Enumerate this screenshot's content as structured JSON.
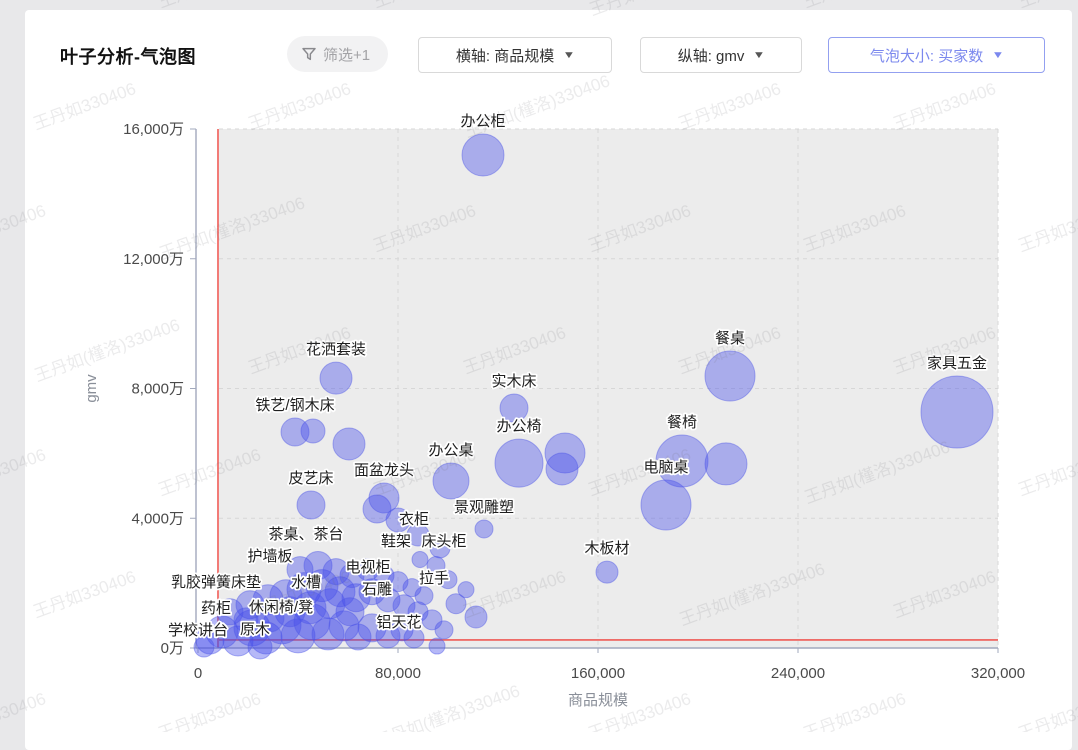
{
  "header": {
    "title": "叶子分析-气泡图",
    "filter_label": "筛选+1",
    "dropdowns": [
      {
        "id": "x-axis",
        "label": "横轴: 商品规模"
      },
      {
        "id": "y-axis",
        "label": "纵轴: gmv"
      },
      {
        "id": "bubble-size",
        "label": "气泡大小: 买家数"
      }
    ],
    "accent_color": "#7b88ee"
  },
  "watermark": {
    "texts": [
      "王丹如330406",
      "王丹如(槿洛)330406"
    ]
  },
  "chart_data": {
    "type": "scatter",
    "variant": "bubble",
    "xlabel": "商品规模",
    "ylabel": "gmv",
    "grid": "dashed",
    "plot_bg": "#ececec",
    "bubble_fill": "rgba(70,78,235,0.40)",
    "bubble_stroke": "rgba(80,88,230,0.45)",
    "xlim": [
      0,
      320000
    ],
    "ylim_wan": [
      0,
      16000
    ],
    "x_ticks": [
      {
        "value": 0,
        "label": "0"
      },
      {
        "value": 80000,
        "label": "80,000"
      },
      {
        "value": 160000,
        "label": "160,000"
      },
      {
        "value": 240000,
        "label": "240,000"
      },
      {
        "value": 320000,
        "label": "320,000"
      }
    ],
    "y_ticks": [
      {
        "value": 0,
        "label": "0万"
      },
      {
        "value": 4000,
        "label": "4,000万"
      },
      {
        "value": 8000,
        "label": "8,000万"
      },
      {
        "value": 12000,
        "label": "12,000万"
      },
      {
        "value": 16000,
        "label": "16,000万"
      }
    ],
    "reference_lines": {
      "x_value": 8000,
      "y_value_wan": 250,
      "color": "#ee5a55"
    },
    "labeled_points": [
      {
        "label": "办公柜",
        "x": 114000,
        "gmv_wan": 15200,
        "r": 21
      },
      {
        "label": "花洒套装",
        "x": 55200,
        "gmv_wan": 8320,
        "r": 16
      },
      {
        "label": "铁艺/钢木床",
        "x": 38800,
        "gmv_wan": 6660,
        "r": 14
      },
      {
        "label": "皮艺床",
        "x": 45200,
        "gmv_wan": 4410,
        "r": 14
      },
      {
        "label": "面盆龙头",
        "x": 74400,
        "gmv_wan": 4625,
        "r": 15
      },
      {
        "label": "办公桌",
        "x": 101200,
        "gmv_wan": 5150,
        "r": 18
      },
      {
        "label": "实木床",
        "x": 126400,
        "gmv_wan": 7400,
        "r": 14
      },
      {
        "label": "办公椅",
        "x": 128400,
        "gmv_wan": 5700,
        "r": 24
      },
      {
        "label": "景观雕塑",
        "x": 114400,
        "gmv_wan": 3670,
        "r": 9
      },
      {
        "label": "木板材",
        "x": 163600,
        "gmv_wan": 2340,
        "r": 11
      },
      {
        "label": "餐桌",
        "x": 212800,
        "gmv_wan": 8385,
        "r": 25
      },
      {
        "label": "餐椅",
        "x": 193600,
        "gmv_wan": 5765,
        "r": 26
      },
      {
        "label": "电脑桌",
        "x": 187200,
        "gmv_wan": 4410,
        "r": 25
      },
      {
        "label": "家具五金",
        "x": 303600,
        "gmv_wan": 7275,
        "r": 36
      }
    ],
    "extra_points": [
      {
        "x": 46000,
        "gmv_wan": 6690,
        "r": 12
      },
      {
        "x": 60400,
        "gmv_wan": 6290,
        "r": 16
      },
      {
        "x": 146800,
        "gmv_wan": 6010,
        "r": 20
      },
      {
        "x": 145600,
        "gmv_wan": 5520,
        "r": 16
      },
      {
        "x": 211200,
        "gmv_wan": 5675,
        "r": 21
      },
      {
        "x": 111200,
        "gmv_wan": 955,
        "r": 11
      },
      {
        "x": 95600,
        "gmv_wan": 60,
        "r": 8
      }
    ],
    "annotations": [
      {
        "label": "茶桌、茶台",
        "x": 43200,
        "gmv_wan": 3515
      },
      {
        "label": "护墙板",
        "x": 28800,
        "gmv_wan": 2836
      },
      {
        "label": "水槽",
        "x": 43200,
        "gmv_wan": 2035
      },
      {
        "label": "乳胶弹簧床垫",
        "x": 7200,
        "gmv_wan": 2035
      },
      {
        "label": "药柜",
        "x": 7200,
        "gmv_wan": 1233
      },
      {
        "label": "休闲椅/凳",
        "x": 33200,
        "gmv_wan": 1264
      },
      {
        "label": "学校讲台",
        "x": 0,
        "gmv_wan": 555
      },
      {
        "label": "原木",
        "x": 22800,
        "gmv_wan": 586
      },
      {
        "label": "衣柜",
        "x": 86400,
        "gmv_wan": 3977
      },
      {
        "label": "鞋架",
        "x": 79200,
        "gmv_wan": 3299
      },
      {
        "label": "床头柜",
        "x": 98400,
        "gmv_wan": 3299
      },
      {
        "label": "电视柜",
        "x": 68000,
        "gmv_wan": 2497
      },
      {
        "label": "石雕",
        "x": 71600,
        "gmv_wan": 1819
      },
      {
        "label": "拉手",
        "x": 94400,
        "gmv_wan": 2158
      },
      {
        "label": "铝天花",
        "x": 80400,
        "gmv_wan": 802
      }
    ],
    "cluster_points": [
      [
        4800,
        248,
        14
      ],
      [
        9600,
        496,
        16
      ],
      [
        16000,
        217,
        15
      ],
      [
        21600,
        620,
        18
      ],
      [
        27200,
        310,
        16
      ],
      [
        33600,
        713,
        19
      ],
      [
        40000,
        372,
        17
      ],
      [
        45600,
        806,
        18
      ],
      [
        52000,
        434,
        16
      ],
      [
        58400,
        682,
        15
      ],
      [
        64000,
        341,
        13
      ],
      [
        69600,
        620,
        14
      ],
      [
        76000,
        372,
        12
      ],
      [
        81600,
        558,
        11
      ],
      [
        86400,
        310,
        10
      ],
      [
        12800,
        1116,
        13
      ],
      [
        20800,
        1333,
        14
      ],
      [
        28000,
        1488,
        15
      ],
      [
        35200,
        1612,
        16
      ],
      [
        42400,
        1798,
        17
      ],
      [
        49600,
        1922,
        16
      ],
      [
        56800,
        1736,
        15
      ],
      [
        63200,
        1550,
        14
      ],
      [
        69600,
        1736,
        13
      ],
      [
        76000,
        1488,
        12
      ],
      [
        82400,
        1302,
        11
      ],
      [
        88000,
        1116,
        10
      ],
      [
        40800,
        2418,
        13
      ],
      [
        48000,
        2542,
        14
      ],
      [
        55200,
        2356,
        13
      ],
      [
        61600,
        2232,
        12
      ],
      [
        68000,
        2418,
        11
      ],
      [
        74400,
        2232,
        10
      ],
      [
        80000,
        2046,
        10
      ],
      [
        85600,
        1860,
        9
      ],
      [
        90400,
        1612,
        9
      ],
      [
        93600,
        868,
        10
      ],
      [
        98400,
        558,
        9
      ],
      [
        103200,
        1364,
        10
      ],
      [
        107200,
        1798,
        8
      ],
      [
        100000,
        2108,
        9
      ],
      [
        95200,
        2542,
        9
      ],
      [
        88800,
        2728,
        8
      ],
      [
        24800,
        30,
        12
      ],
      [
        2400,
        30,
        10
      ],
      [
        19200,
        868,
        12
      ],
      [
        60800,
        1116,
        14
      ],
      [
        52800,
        1364,
        15
      ],
      [
        44800,
        1240,
        16
      ],
      [
        36800,
        1116,
        15
      ],
      [
        28800,
        930,
        14
      ],
      [
        71600,
        4285,
        14
      ],
      [
        80000,
        3946,
        12
      ],
      [
        88000,
        3483,
        11
      ],
      [
        96800,
        3084,
        10
      ]
    ]
  }
}
